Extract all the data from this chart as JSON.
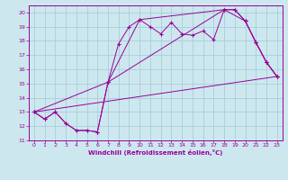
{
  "bg_color": "#cce8ee",
  "grid_color": "#aaccdd",
  "line_color": "#990099",
  "xlabel": "Windchill (Refroidissement éolien,°C)",
  "xlim": [
    -0.5,
    23.5
  ],
  "ylim": [
    11,
    20.5
  ],
  "yticks": [
    11,
    12,
    13,
    14,
    15,
    16,
    17,
    18,
    19,
    20
  ],
  "xticks": [
    0,
    1,
    2,
    3,
    4,
    5,
    6,
    7,
    8,
    9,
    10,
    11,
    12,
    13,
    14,
    15,
    16,
    17,
    18,
    19,
    20,
    21,
    22,
    23
  ],
  "line1_x": [
    0,
    1,
    2,
    3,
    4,
    5,
    6,
    7,
    8,
    9,
    10,
    11,
    12,
    13,
    14,
    15,
    16,
    17,
    18,
    19,
    20,
    21,
    22,
    23
  ],
  "line1_y": [
    13,
    12.5,
    13,
    12.2,
    11.7,
    11.7,
    11.6,
    15.1,
    17.8,
    19.0,
    19.5,
    19.0,
    18.5,
    19.3,
    18.5,
    18.4,
    18.7,
    18.1,
    20.2,
    20.2,
    19.4,
    17.9,
    16.5,
    15.5
  ],
  "line2_x": [
    0,
    7,
    10,
    18,
    19,
    20,
    21,
    22,
    23
  ],
  "line2_y": [
    13,
    15.1,
    19.5,
    20.2,
    20.2,
    19.4,
    17.9,
    16.5,
    15.5
  ],
  "line3_x": [
    0,
    1,
    2,
    3,
    4,
    5,
    6,
    7,
    18,
    20,
    21,
    22,
    23
  ],
  "line3_y": [
    13,
    12.5,
    13,
    12.2,
    11.7,
    11.7,
    11.6,
    15.1,
    20.2,
    19.4,
    17.9,
    16.5,
    15.5
  ],
  "line4_x": [
    0,
    23
  ],
  "line4_y": [
    13,
    15.5
  ]
}
